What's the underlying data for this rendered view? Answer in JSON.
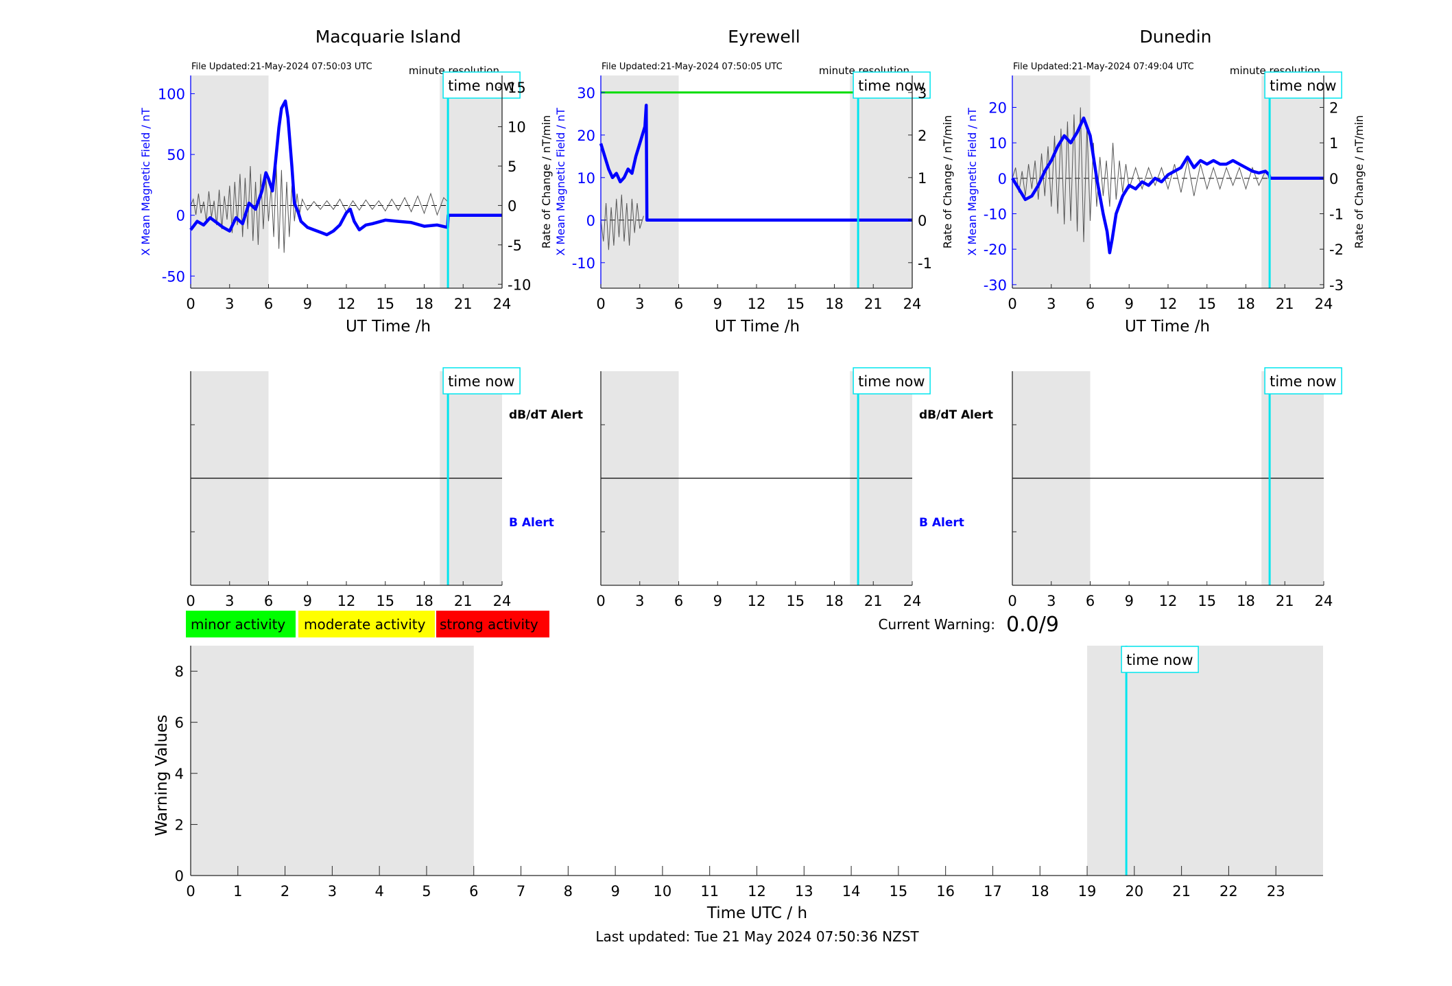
{
  "chart_data": [
    {
      "type": "line",
      "title": "Macquarie Island",
      "file_updated": "File Updated:21-May-2024 07:50:03 UTC",
      "resolution_label": "minute resolution",
      "time_now_label": "time now",
      "xlabel": "UT Time /h",
      "ylabel_left": "X Mean Magnetic Field / nT",
      "ylabel_right": "Rate of Change / nT/min",
      "xlim": [
        0,
        24
      ],
      "xticks": [
        0,
        3,
        6,
        9,
        12,
        15,
        18,
        21,
        24
      ],
      "ylim_left": [
        -60,
        115
      ],
      "yticks_left": [
        -50,
        0,
        50,
        100
      ],
      "ylim_right": [
        -10.5,
        16.5
      ],
      "yticks_right": [
        -10,
        -5,
        0,
        5,
        10,
        15
      ],
      "shaded_hours": [
        [
          0,
          6
        ],
        [
          19.2,
          24
        ]
      ],
      "time_now": 19.83,
      "field_series": [
        [
          0,
          -12
        ],
        [
          0.5,
          -5
        ],
        [
          1,
          -8
        ],
        [
          1.5,
          -2
        ],
        [
          2,
          -6
        ],
        [
          2.5,
          -10
        ],
        [
          3,
          -13
        ],
        [
          3.5,
          -2
        ],
        [
          4,
          -7
        ],
        [
          4.5,
          10
        ],
        [
          5,
          5
        ],
        [
          5.5,
          20
        ],
        [
          5.8,
          35
        ],
        [
          6,
          30
        ],
        [
          6.3,
          20
        ],
        [
          6.5,
          40
        ],
        [
          6.8,
          72
        ],
        [
          7,
          88
        ],
        [
          7.3,
          94
        ],
        [
          7.5,
          80
        ],
        [
          7.8,
          40
        ],
        [
          8,
          10
        ],
        [
          8.3,
          2
        ],
        [
          8.5,
          -5
        ],
        [
          9,
          -10
        ],
        [
          9.5,
          -12
        ],
        [
          10,
          -14
        ],
        [
          10.5,
          -16
        ],
        [
          11,
          -13
        ],
        [
          11.5,
          -8
        ],
        [
          12,
          2
        ],
        [
          12.3,
          5
        ],
        [
          12.6,
          -5
        ],
        [
          13,
          -12
        ],
        [
          13.5,
          -8
        ],
        [
          14,
          -7
        ],
        [
          15,
          -4
        ],
        [
          16,
          -5
        ],
        [
          17,
          -6
        ],
        [
          18,
          -9
        ],
        [
          19,
          -8
        ],
        [
          19.8,
          -10
        ],
        [
          19.85,
          0
        ],
        [
          24,
          0
        ]
      ],
      "rate_series": [
        [
          0,
          0
        ],
        [
          0.2,
          0.8
        ],
        [
          0.4,
          -1.2
        ],
        [
          0.6,
          1.5
        ],
        [
          0.8,
          -1
        ],
        [
          1,
          0.5
        ],
        [
          1.2,
          -2
        ],
        [
          1.4,
          1.8
        ],
        [
          1.6,
          -1.5
        ],
        [
          1.8,
          0.6
        ],
        [
          2,
          -2.5
        ],
        [
          2.2,
          2
        ],
        [
          2.4,
          -3
        ],
        [
          2.6,
          1.2
        ],
        [
          2.8,
          -1.8
        ],
        [
          3,
          2.5
        ],
        [
          3.2,
          -3.5
        ],
        [
          3.4,
          3
        ],
        [
          3.6,
          -2.5
        ],
        [
          3.8,
          4
        ],
        [
          4,
          -4
        ],
        [
          4.2,
          3.5
        ],
        [
          4.4,
          -3
        ],
        [
          4.6,
          5
        ],
        [
          4.8,
          -4.5
        ],
        [
          5,
          3
        ],
        [
          5.2,
          -5
        ],
        [
          5.4,
          4
        ],
        [
          5.6,
          -3
        ],
        [
          5.8,
          3.5
        ],
        [
          6,
          -2
        ],
        [
          6.2,
          2.5
        ],
        [
          6.4,
          -4
        ],
        [
          6.6,
          5
        ],
        [
          6.8,
          -5.5
        ],
        [
          7,
          4.5
        ],
        [
          7.2,
          -6
        ],
        [
          7.4,
          3
        ],
        [
          7.6,
          -4
        ],
        [
          7.8,
          2.5
        ],
        [
          8,
          -2
        ],
        [
          8.2,
          1.5
        ],
        [
          8.4,
          -1
        ],
        [
          8.6,
          0.8
        ],
        [
          9,
          -0.6
        ],
        [
          9.5,
          0.5
        ],
        [
          10,
          -0.5
        ],
        [
          10.5,
          0.6
        ],
        [
          11,
          -0.5
        ],
        [
          11.5,
          0.8
        ],
        [
          12,
          -0.8
        ],
        [
          12.5,
          0.6
        ],
        [
          13,
          -0.6
        ],
        [
          13.5,
          0.7
        ],
        [
          14,
          -0.5
        ],
        [
          14.5,
          0.6
        ],
        [
          15,
          -0.7
        ],
        [
          15.5,
          0.8
        ],
        [
          16,
          -0.6
        ],
        [
          16.5,
          1
        ],
        [
          17,
          -0.8
        ],
        [
          17.5,
          1.2
        ],
        [
          18,
          -1
        ],
        [
          18.5,
          1.5
        ],
        [
          19,
          -1.2
        ],
        [
          19.5,
          1
        ],
        [
          19.8,
          0.5
        ]
      ]
    },
    {
      "type": "line",
      "title": "Eyrewell",
      "file_updated": "File Updated:21-May-2024 07:50:05 UTC",
      "resolution_label": "minute resolution",
      "time_now_label": "time now",
      "xlabel": "UT Time /h",
      "ylabel_left": "X Mean Magnetic Field / nT",
      "ylabel_right": "Rate of Change / nT/min",
      "xlim": [
        0,
        24
      ],
      "xticks": [
        0,
        3,
        6,
        9,
        12,
        15,
        18,
        21,
        24
      ],
      "ylim_left": [
        -16,
        34
      ],
      "yticks_left": [
        -10,
        0,
        10,
        20,
        30
      ],
      "ylim_right": [
        -1.6,
        3.4
      ],
      "yticks_right": [
        -1,
        0,
        1,
        2,
        3
      ],
      "shaded_hours": [
        [
          0,
          6
        ],
        [
          19.2,
          24
        ]
      ],
      "time_now": 19.83,
      "threshold_line": 30,
      "field_series": [
        [
          0,
          18
        ],
        [
          0.3,
          15
        ],
        [
          0.6,
          12
        ],
        [
          0.9,
          10
        ],
        [
          1.2,
          11
        ],
        [
          1.5,
          9
        ],
        [
          1.8,
          10
        ],
        [
          2.1,
          12
        ],
        [
          2.4,
          11
        ],
        [
          2.7,
          15
        ],
        [
          3,
          18
        ],
        [
          3.2,
          20
        ],
        [
          3.4,
          22
        ],
        [
          3.5,
          27
        ],
        [
          3.55,
          0
        ],
        [
          24,
          0
        ]
      ],
      "rate_series": [
        [
          0,
          0
        ],
        [
          0.2,
          -0.5
        ],
        [
          0.4,
          0.4
        ],
        [
          0.6,
          -0.7
        ],
        [
          0.8,
          0.3
        ],
        [
          1,
          -0.6
        ],
        [
          1.2,
          0.5
        ],
        [
          1.4,
          -0.4
        ],
        [
          1.6,
          0.6
        ],
        [
          1.8,
          -0.5
        ],
        [
          2,
          0.4
        ],
        [
          2.2,
          -0.6
        ],
        [
          2.4,
          0.5
        ],
        [
          2.6,
          -0.3
        ],
        [
          2.8,
          0.4
        ],
        [
          3,
          -0.2
        ],
        [
          3.3,
          0.1
        ]
      ]
    },
    {
      "type": "line",
      "title": "Dunedin",
      "file_updated": "File Updated:21-May-2024 07:49:04 UTC",
      "resolution_label": "minute resolution",
      "time_now_label": "time now",
      "xlabel": "UT Time /h",
      "ylabel_left": "X Mean Magnetic Field / nT",
      "ylabel_right": "Rate of Change / nT/min",
      "xlim": [
        0,
        24
      ],
      "xticks": [
        0,
        3,
        6,
        9,
        12,
        15,
        18,
        21,
        24
      ],
      "ylim_left": [
        -31,
        29
      ],
      "yticks_left": [
        -30,
        -20,
        -10,
        0,
        10,
        20
      ],
      "ylim_right": [
        -3.1,
        2.9
      ],
      "yticks_right": [
        -3,
        -2,
        -1,
        0,
        1,
        2
      ],
      "shaded_hours": [
        [
          0,
          6
        ],
        [
          19.2,
          24
        ]
      ],
      "time_now": 19.83,
      "field_series": [
        [
          0,
          0
        ],
        [
          0.5,
          -3
        ],
        [
          1,
          -6
        ],
        [
          1.5,
          -5
        ],
        [
          2,
          -2
        ],
        [
          2.5,
          2
        ],
        [
          3,
          5
        ],
        [
          3.5,
          9
        ],
        [
          4,
          12
        ],
        [
          4.5,
          10
        ],
        [
          5,
          13
        ],
        [
          5.5,
          17
        ],
        [
          6,
          12
        ],
        [
          6.5,
          0
        ],
        [
          7,
          -10
        ],
        [
          7.3,
          -15
        ],
        [
          7.5,
          -21
        ],
        [
          7.7,
          -17
        ],
        [
          8,
          -10
        ],
        [
          8.5,
          -5
        ],
        [
          9,
          -2
        ],
        [
          9.5,
          -3
        ],
        [
          10,
          -1
        ],
        [
          10.5,
          -2
        ],
        [
          11,
          0
        ],
        [
          11.5,
          -1
        ],
        [
          12,
          1
        ],
        [
          12.5,
          2
        ],
        [
          13,
          3
        ],
        [
          13.5,
          6
        ],
        [
          14,
          3
        ],
        [
          14.5,
          5
        ],
        [
          15,
          4
        ],
        [
          15.5,
          5
        ],
        [
          16,
          4
        ],
        [
          16.5,
          4
        ],
        [
          17,
          5
        ],
        [
          17.5,
          4
        ],
        [
          18,
          3
        ],
        [
          18.5,
          2
        ],
        [
          19,
          1.5
        ],
        [
          19.5,
          2
        ],
        [
          19.8,
          1
        ],
        [
          19.85,
          0
        ],
        [
          24,
          0
        ]
      ],
      "rate_series": [
        [
          0,
          0
        ],
        [
          0.25,
          0.3
        ],
        [
          0.5,
          -0.4
        ],
        [
          0.75,
          0.2
        ],
        [
          1,
          -0.5
        ],
        [
          1.25,
          0.4
        ],
        [
          1.5,
          -0.3
        ],
        [
          1.75,
          0.5
        ],
        [
          2,
          -0.6
        ],
        [
          2.25,
          0.7
        ],
        [
          2.5,
          -0.5
        ],
        [
          2.75,
          0.9
        ],
        [
          3,
          -0.8
        ],
        [
          3.25,
          1.2
        ],
        [
          3.5,
          -1
        ],
        [
          3.75,
          1.4
        ],
        [
          4,
          -1.3
        ],
        [
          4.25,
          1.6
        ],
        [
          4.5,
          -1.2
        ],
        [
          4.75,
          1.8
        ],
        [
          5,
          -1.5
        ],
        [
          5.25,
          2
        ],
        [
          5.5,
          -1.8
        ],
        [
          5.75,
          1.5
        ],
        [
          6,
          -1.2
        ],
        [
          6.25,
          1
        ],
        [
          6.5,
          -0.8
        ],
        [
          6.75,
          0.6
        ],
        [
          7,
          -0.5
        ],
        [
          7.25,
          0.5
        ],
        [
          7.5,
          -0.8
        ],
        [
          7.75,
          1
        ],
        [
          8,
          -0.6
        ],
        [
          8.25,
          0.5
        ],
        [
          8.5,
          -0.4
        ],
        [
          8.75,
          0.4
        ],
        [
          9,
          -0.3
        ],
        [
          9.5,
          0.3
        ],
        [
          10,
          -0.3
        ],
        [
          10.5,
          0.3
        ],
        [
          11,
          -0.2
        ],
        [
          11.5,
          0.3
        ],
        [
          12,
          -0.3
        ],
        [
          12.5,
          0.4
        ],
        [
          13,
          -0.4
        ],
        [
          13.5,
          0.5
        ],
        [
          14,
          -0.5
        ],
        [
          14.5,
          0.4
        ],
        [
          15,
          -0.3
        ],
        [
          15.5,
          0.3
        ],
        [
          16,
          -0.3
        ],
        [
          16.5,
          0.3
        ],
        [
          17,
          -0.2
        ],
        [
          17.5,
          0.3
        ],
        [
          18,
          -0.3
        ],
        [
          18.5,
          0.3
        ],
        [
          19,
          -0.2
        ],
        [
          19.5,
          0.2
        ],
        [
          19.8,
          0.1
        ]
      ]
    },
    {
      "type": "alert",
      "panel": "Macquarie Island",
      "time_now_label": "time now",
      "xlim": [
        0,
        24
      ],
      "xticks": [
        0,
        3,
        6,
        9,
        12,
        15,
        18,
        21,
        24
      ],
      "shaded_hours": [
        [
          0,
          6
        ],
        [
          19.2,
          24
        ]
      ],
      "time_now": 19.83,
      "upper_label": "dB/dT Alert",
      "lower_label": "B Alert"
    },
    {
      "type": "alert",
      "panel": "Eyrewell",
      "time_now_label": "time now",
      "xlim": [
        0,
        24
      ],
      "xticks": [
        0,
        3,
        6,
        9,
        12,
        15,
        18,
        21,
        24
      ],
      "shaded_hours": [
        [
          0,
          6
        ],
        [
          19.2,
          24
        ]
      ],
      "time_now": 19.83,
      "upper_label": "dB/dT Alert",
      "lower_label": "B Alert"
    },
    {
      "type": "alert",
      "panel": "Dunedin",
      "time_now_label": "time now",
      "xlim": [
        0,
        24
      ],
      "xticks": [
        0,
        3,
        6,
        9,
        12,
        15,
        18,
        21,
        24
      ],
      "shaded_hours": [
        [
          0,
          6
        ],
        [
          19.2,
          24
        ]
      ],
      "time_now": 19.83,
      "upper_label": "",
      "lower_label": ""
    },
    {
      "type": "bar",
      "title": "",
      "time_now_label": "time now",
      "xlabel": "Time UTC / h",
      "ylabel": "Warning Values",
      "xlim": [
        0,
        24
      ],
      "xticks": [
        0,
        1,
        2,
        3,
        4,
        5,
        6,
        7,
        8,
        9,
        10,
        11,
        12,
        13,
        14,
        15,
        16,
        17,
        18,
        19,
        20,
        21,
        22,
        23
      ],
      "ylim": [
        0,
        9
      ],
      "yticks": [
        0,
        2,
        4,
        6,
        8
      ],
      "shaded_hours": [
        [
          0,
          6
        ],
        [
          19,
          24
        ]
      ],
      "time_now": 19.83,
      "values": []
    }
  ],
  "legend": {
    "minor": {
      "label": "minor activity",
      "color": "#00ff00"
    },
    "moderate": {
      "label": "moderate activity",
      "color": "#ffff00"
    },
    "strong": {
      "label": "strong activity",
      "color": "#ff0000"
    }
  },
  "current_warning": {
    "label": "Current Warning:",
    "value": "0.0/9"
  },
  "last_updated": "Last updated: Tue 21 May 2024 07:50:36 NZST",
  "colors": {
    "field": "#0000ff",
    "rate": "#555555",
    "time_now": "#00e5ee",
    "shade": "#e6e6e6",
    "threshold": "#00dd00",
    "alert_label_lower": "#0000ff"
  }
}
